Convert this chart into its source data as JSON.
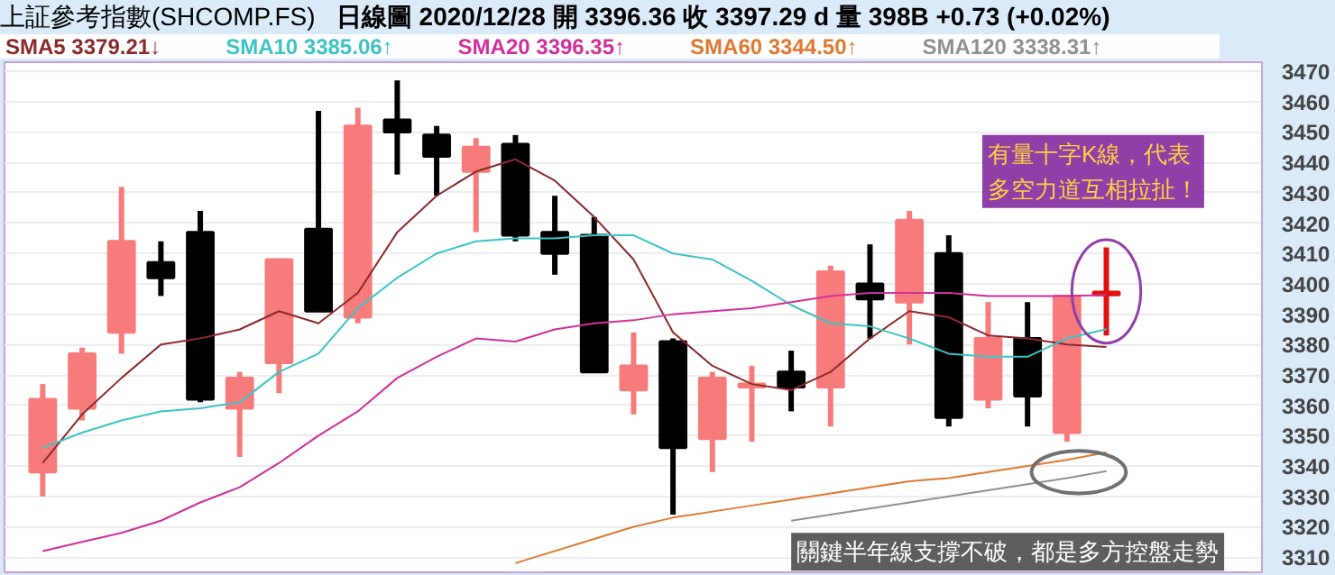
{
  "chart_data": {
    "type": "candlestick",
    "title": "上証參考指數(SHCOMP.FS)",
    "subtitle": "日線圖   2020/12/28   開 3396.36   收 3397.29 d   量 398B   +0.73 (+0.02%)",
    "categories": [
      null,
      null,
      null,
      null,
      null,
      null,
      null,
      null,
      null,
      null,
      null,
      null,
      null,
      null,
      null,
      null,
      null,
      null,
      null,
      null,
      null,
      null,
      null,
      null,
      null,
      null,
      null,
      null
    ],
    "ohlc": [
      [
        3338,
        3367,
        3330,
        3362
      ],
      [
        3359,
        3379,
        3355,
        3377
      ],
      [
        3384,
        3432,
        3377,
        3414
      ],
      [
        3407,
        3414,
        3396,
        3402
      ],
      [
        3417,
        3424,
        3361,
        3362
      ],
      [
        3359,
        3371,
        3343,
        3369
      ],
      [
        3374,
        3408,
        3364,
        3408
      ],
      [
        3418,
        3457,
        3391,
        3391
      ],
      [
        3389,
        3458,
        3387,
        3452
      ],
      [
        3454,
        3467,
        3436,
        3450
      ],
      [
        3449,
        3452,
        3429,
        3442
      ],
      [
        3437,
        3448,
        3417,
        3445
      ],
      [
        3446,
        3449,
        3414,
        3416
      ],
      [
        3417,
        3429,
        3403,
        3410
      ],
      [
        3416,
        3422,
        3371,
        3371
      ],
      [
        3365,
        3384,
        3357,
        3373
      ],
      [
        3381,
        3382,
        3324,
        3346
      ],
      [
        3349,
        3371,
        3338,
        3369
      ],
      [
        3366,
        3373,
        3348,
        3367
      ],
      [
        3371,
        3378,
        3358,
        3366
      ],
      [
        3366,
        3406,
        3353,
        3404
      ],
      [
        3400,
        3413,
        3382,
        3395
      ],
      [
        3394,
        3424,
        3380,
        3421
      ],
      [
        3410,
        3416,
        3353,
        3356
      ],
      [
        3362,
        3394,
        3359,
        3382
      ],
      [
        3382,
        3394,
        3353,
        3363
      ],
      [
        3351,
        3396,
        3348,
        3396
      ],
      [
        3396.36,
        3412,
        3383,
        3397.29
      ]
    ],
    "colors": [
      "#f77b7b",
      "#f77b7b",
      "#f77b7b",
      "#000000",
      "#000000",
      "#f77b7b",
      "#f77b7b",
      "#000000",
      "#f77b7b",
      "#000000",
      "#000000",
      "#f77b7b",
      "#000000",
      "#000000",
      "#000000",
      "#f77b7b",
      "#000000",
      "#f77b7b",
      "#f77b7b",
      "#000000",
      "#f77b7b",
      "#000000",
      "#f77b7b",
      "#000000",
      "#f77b7b",
      "#000000",
      "#f77b7b",
      "#e01010"
    ],
    "series": [
      {
        "name": "SMA5 3379.21↓",
        "type": "line",
        "color": "#8b2a2a",
        "values": [
          3341,
          3357,
          3369,
          3380,
          3382,
          3385,
          3391,
          3387,
          3397,
          3417,
          3429,
          3437,
          3441,
          3434,
          3422,
          3408,
          3384,
          3373,
          3367,
          3365,
          3371,
          3382,
          3391,
          3389,
          3383,
          3382,
          3380,
          3379.21
        ]
      },
      {
        "name": "SMA10 3385.06↑",
        "type": "line",
        "color": "#3cc4c4",
        "values": [
          3346,
          3351,
          3355,
          3358,
          3359,
          3361,
          3371,
          3377,
          3392,
          3402,
          3410,
          3414,
          3415,
          3415,
          3416,
          3416,
          3410,
          3408,
          3401,
          3393,
          3387,
          3386,
          3382,
          3377,
          3376,
          3376,
          3382,
          3385.06
        ]
      },
      {
        "name": "SMA20 3396.35↑",
        "type": "line",
        "color": "#d0309a",
        "values": [
          3312,
          3315,
          3318,
          3322,
          3328,
          3333,
          3341,
          3350,
          3358,
          3369,
          3376,
          3382,
          3381,
          3385,
          3387,
          3388,
          3390,
          3391,
          3392,
          3394,
          3396,
          3397,
          3397,
          3397,
          3396,
          3396,
          3396,
          3396.35
        ]
      },
      {
        "name": "SMA60 3344.50↑",
        "type": "line",
        "color": "#e07830",
        "values": [
          null,
          null,
          null,
          null,
          null,
          null,
          null,
          null,
          null,
          null,
          null,
          null,
          3308,
          3312,
          3316,
          3320,
          3323,
          3325,
          3327,
          3329,
          3331,
          3333,
          3335,
          3336,
          3338,
          3340,
          3342,
          3344.5
        ]
      },
      {
        "name": "SMA120 3338.31↑",
        "type": "line",
        "color": "#909090",
        "values": [
          null,
          null,
          null,
          null,
          null,
          null,
          null,
          null,
          null,
          null,
          null,
          null,
          null,
          null,
          null,
          null,
          null,
          null,
          null,
          3322,
          3324,
          3326,
          3328,
          3330,
          3332,
          3334,
          3336,
          3338.31
        ]
      }
    ],
    "ylim": [
      3305,
      3473
    ],
    "yticks": [
      3310,
      3320,
      3330,
      3340,
      3350,
      3360,
      3370,
      3380,
      3390,
      3400,
      3410,
      3420,
      3430,
      3440,
      3450,
      3460,
      3470
    ],
    "grid": "y",
    "legend": "top",
    "annotations": [
      "有量十字K線，代表多空力道互相拉扯！",
      "關鍵半年線支撐不破，都是多方控盤走勢"
    ]
  }
}
